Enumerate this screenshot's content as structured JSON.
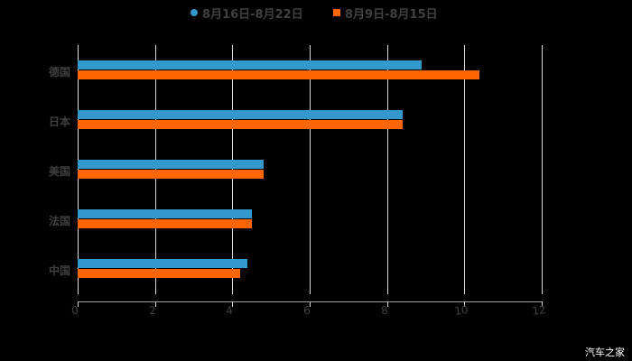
{
  "chart_data": {
    "type": "bar",
    "orientation": "horizontal",
    "title": "",
    "categories": [
      "德国",
      "日本",
      "美国",
      "法国",
      "中国"
    ],
    "series": [
      {
        "name": "8月16日-8月22日",
        "color": "#3399cc",
        "values": [
          8.9,
          8.4,
          4.8,
          4.5,
          4.4
        ]
      },
      {
        "name": "8月9日-8月15日",
        "color": "#ff6600",
        "values": [
          10.4,
          8.4,
          4.8,
          4.5,
          4.2
        ]
      }
    ],
    "xlabel": "",
    "ylabel": "",
    "xlim": [
      0,
      12
    ],
    "xticks": [
      "0",
      "2",
      "4",
      "6",
      "8",
      "10",
      "12"
    ],
    "grid": true,
    "legend_position": "top"
  },
  "legend": {
    "series1_label": "8月16日-8月22日",
    "series2_label": "8月9日-8月15日"
  },
  "watermark": "汽车之家"
}
